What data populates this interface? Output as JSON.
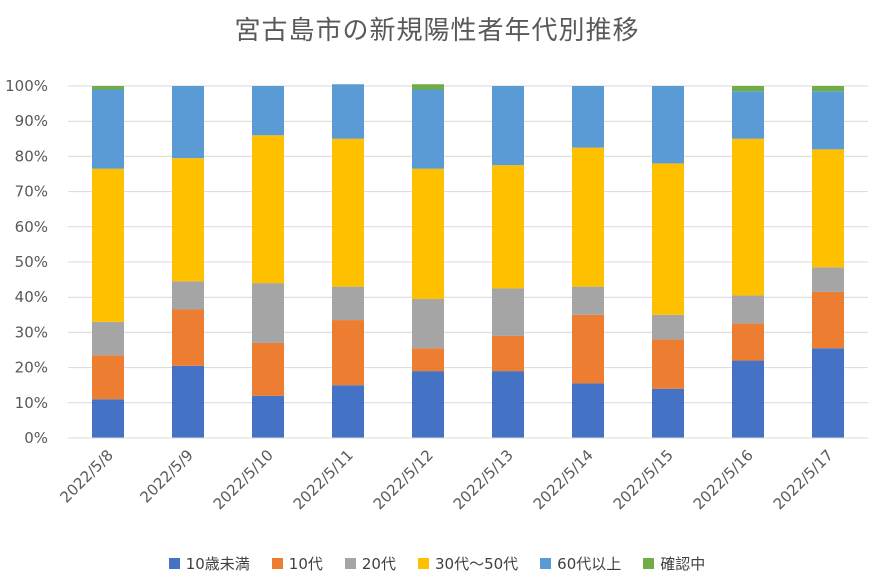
{
  "chart_data": {
    "type": "bar",
    "stacked": true,
    "percent": true,
    "title": "宮古島市の新規陽性者年代別推移",
    "categories": [
      "2022/5/8",
      "2022/5/9",
      "2022/5/10",
      "2022/5/11",
      "2022/5/12",
      "2022/5/13",
      "2022/5/14",
      "2022/5/15",
      "2022/5/16",
      "2022/5/17"
    ],
    "series": [
      {
        "name": "10歳未満",
        "color": "#4472C4",
        "values": [
          11,
          20.5,
          12,
          15,
          19,
          19,
          15.5,
          14,
          22,
          25.5
        ]
      },
      {
        "name": "10代",
        "color": "#ED7D31",
        "values": [
          12.5,
          16,
          15,
          18.5,
          6.5,
          10,
          19.5,
          14,
          10.5,
          16
        ]
      },
      {
        "name": "20代",
        "color": "#A5A5A5",
        "values": [
          9.5,
          8,
          17,
          9.5,
          14,
          13.5,
          8,
          7,
          8,
          7
        ]
      },
      {
        "name": "30代～50代",
        "color": "#FFC000",
        "values": [
          43.5,
          35,
          42,
          42,
          37,
          35,
          39.5,
          43,
          44.5,
          33.5
        ]
      },
      {
        "name": "60代以上",
        "color": "#5B9BD5",
        "values": [
          22.5,
          20.5,
          14,
          15.5,
          22.5,
          22.5,
          17.5,
          22,
          13.5,
          16.5
        ]
      },
      {
        "name": "確認中",
        "color": "#70AD47",
        "values": [
          1,
          0,
          0,
          0,
          1.5,
          0,
          0,
          0,
          1.5,
          1.5
        ]
      }
    ],
    "ylim": [
      0,
      100
    ],
    "yticks": [
      "0%",
      "10%",
      "20%",
      "30%",
      "40%",
      "50%",
      "60%",
      "70%",
      "80%",
      "90%",
      "100%"
    ],
    "grid": true,
    "legend_position": "bottom"
  }
}
